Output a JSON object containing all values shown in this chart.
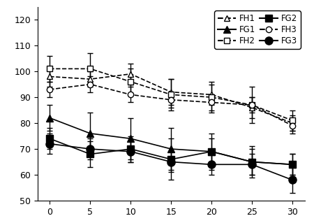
{
  "x": [
    0,
    5,
    10,
    15,
    20,
    25,
    30
  ],
  "FH1": [
    98,
    97,
    99,
    92,
    91,
    86,
    80
  ],
  "FH2": [
    101,
    101,
    96,
    91,
    90,
    87,
    81
  ],
  "FH3": [
    93,
    95,
    91,
    89,
    88,
    87,
    79
  ],
  "FG1": [
    82,
    76,
    74,
    70,
    69,
    65,
    64
  ],
  "FG2": [
    74,
    68,
    70,
    66,
    69,
    65,
    64
  ],
  "FG3": [
    72,
    70,
    69,
    65,
    64,
    64,
    58
  ],
  "FH1_err": [
    4,
    3,
    4,
    5,
    4,
    4,
    3
  ],
  "FH2_err": [
    5,
    6,
    5,
    6,
    6,
    7,
    4
  ],
  "FH3_err": [
    3,
    3,
    3,
    3,
    3,
    3,
    3
  ],
  "FG1_err": [
    5,
    8,
    8,
    8,
    7,
    5,
    4
  ],
  "FG2_err": [
    4,
    5,
    5,
    8,
    5,
    6,
    4
  ],
  "FG3_err": [
    4,
    4,
    4,
    4,
    4,
    4,
    5
  ],
  "ylim": [
    50,
    125
  ],
  "yticks": [
    50,
    60,
    70,
    80,
    90,
    100,
    110,
    120
  ],
  "xticks": [
    0,
    5,
    10,
    15,
    20,
    25,
    30
  ],
  "figsize": [
    4.5,
    3.19
  ],
  "dpi": 100
}
